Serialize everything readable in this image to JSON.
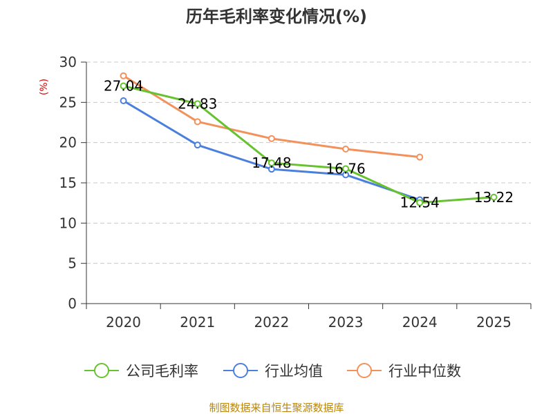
{
  "chart_data": {
    "type": "line",
    "title": "历年毛利率变化情况(%)",
    "ylabel": "(%)",
    "xlabel": "",
    "categories": [
      "2020",
      "2021",
      "2022",
      "2023",
      "2024",
      "2025"
    ],
    "ylim": [
      0,
      30
    ],
    "yticks": [
      0,
      5,
      10,
      15,
      20,
      25,
      30
    ],
    "grid": true,
    "legend_position": "bottom",
    "series": [
      {
        "name": "公司毛利率",
        "color": "#66c22e",
        "values": [
          27.04,
          24.83,
          17.48,
          16.76,
          12.54,
          13.22
        ],
        "data_labels": [
          "27.04",
          "24.83",
          "17.48",
          "16.76",
          "12.54",
          "13.22"
        ]
      },
      {
        "name": "行业均值",
        "color": "#4a7fdd",
        "values": [
          25.2,
          19.7,
          16.7,
          16.0,
          12.9,
          null
        ]
      },
      {
        "name": "行业中位数",
        "color": "#f3915c",
        "values": [
          28.3,
          22.6,
          20.5,
          19.2,
          18.2,
          null
        ]
      }
    ]
  },
  "source": "制图数据来自恒生聚源数据库"
}
